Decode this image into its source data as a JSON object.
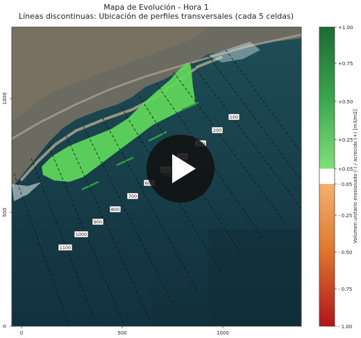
{
  "chart_data": {
    "type": "heatmap",
    "title": "Mapa de Evolución - Hora 1",
    "subtitle": "Líneas discontinuas: Ubicación de perfiles transversales (cada 5 celdas)",
    "xlabel": "",
    "ylabel": "",
    "xlim": [
      -60,
      1380
    ],
    "ylim": [
      0,
      1320
    ],
    "x_ticks": [
      "0",
      "500",
      "1000"
    ],
    "y_ticks": [
      "0",
      "500",
      "1000"
    ],
    "colorbar": {
      "label": "Volumen unitario erosionado (-) / acrecido (+) [m3/m2]",
      "ticks": [
        "+1.00",
        "+0.75",
        "+0.50",
        "+0.25",
        "+0.05",
        "- 0.05",
        "- 0.25",
        "- 0.50",
        "- 0.75",
        "- 1.00"
      ],
      "range": [
        -1.0,
        1.0
      ],
      "neutral_band": [
        -0.05,
        0.05
      ],
      "positive_color": "#1e7d3a",
      "negative_color": "#c0261b"
    },
    "profile_labels": [
      "100",
      "200",
      "300",
      "400",
      "500",
      "600",
      "700",
      "800",
      "900",
      "1000",
      "1100"
    ],
    "accretion_color": "#5fd85a",
    "overlay": "play-button"
  }
}
